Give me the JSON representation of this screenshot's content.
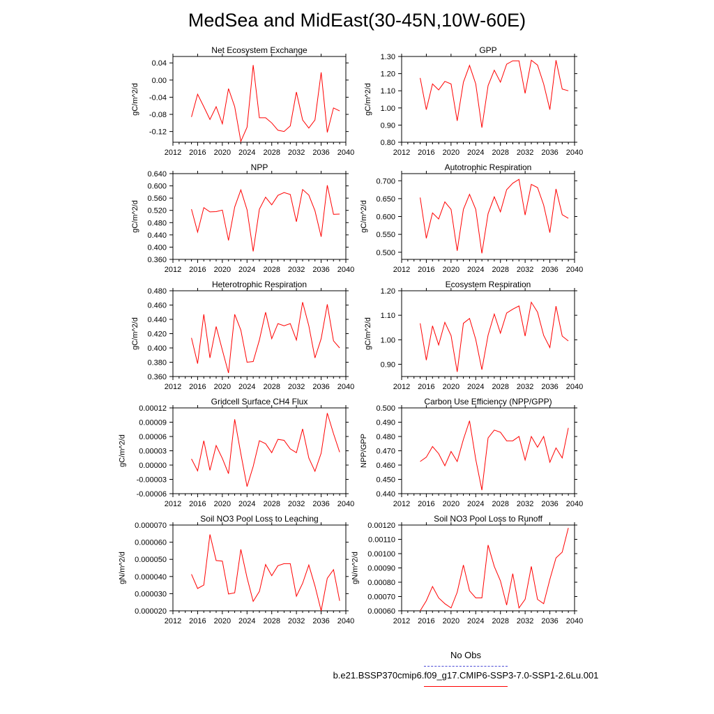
{
  "title": "MedSea and MidEast(30-45N,10W-60E)",
  "legend": {
    "obs_label": "No Obs",
    "case_label": "b.e21.BSSP370cmip6.f09_g17.CMIP6-SSP3-7.0-SSP1-2.6Lu.001",
    "obs_color": "#4b4bd6",
    "case_color": "#ff0000"
  },
  "chart_data": [
    {
      "type": "line",
      "title": "Net Ecosystem Exchange",
      "ylabel": "gC/m^2/d",
      "xlim": [
        2012,
        2040
      ],
      "ylim": [
        -0.145,
        0.055
      ],
      "xticks": [
        "2012",
        "2016",
        "2020",
        "2024",
        "2028",
        "2032",
        "2036",
        "2040"
      ],
      "yticks": [
        "0.04",
        "0.00",
        "-0.04",
        "-0.08",
        "-0.12"
      ],
      "x": [
        2015,
        2016,
        2017,
        2018,
        2019,
        2020,
        2021,
        2022,
        2023,
        2024,
        2025,
        2026,
        2027,
        2028,
        2029,
        2030,
        2031,
        2032,
        2033,
        2034,
        2035,
        2036,
        2037,
        2038,
        2039
      ],
      "series": [
        {
          "values": [
            -0.086,
            -0.033,
            -0.062,
            -0.092,
            -0.062,
            -0.102,
            -0.02,
            -0.062,
            -0.143,
            -0.11,
            0.035,
            -0.088,
            -0.088,
            -0.1,
            -0.117,
            -0.12,
            -0.107,
            -0.028,
            -0.093,
            -0.112,
            -0.093,
            0.018,
            -0.122,
            -0.065,
            -0.072
          ]
        }
      ]
    },
    {
      "type": "line",
      "title": "GPP",
      "ylabel": "gC/m^2/d",
      "xlim": [
        2012,
        2040
      ],
      "ylim": [
        0.8,
        1.3
      ],
      "xticks": [
        "2012",
        "2016",
        "2020",
        "2024",
        "2028",
        "2032",
        "2036",
        "2040"
      ],
      "yticks": [
        "1.30",
        "1.20",
        "1.10",
        "1.00",
        "0.90",
        "0.80"
      ],
      "x": [
        2015,
        2016,
        2017,
        2018,
        2019,
        2020,
        2021,
        2022,
        2023,
        2024,
        2025,
        2026,
        2027,
        2028,
        2029,
        2030,
        2031,
        2032,
        2033,
        2034,
        2035,
        2036,
        2037,
        2038,
        2039
      ],
      "series": [
        {
          "values": [
            1.175,
            0.99,
            1.14,
            1.105,
            1.155,
            1.14,
            0.925,
            1.15,
            1.248,
            1.14,
            0.885,
            1.13,
            1.22,
            1.15,
            1.255,
            1.275,
            1.275,
            1.085,
            1.278,
            1.25,
            1.14,
            0.99,
            1.278,
            1.11,
            1.1
          ]
        }
      ]
    },
    {
      "type": "line",
      "title": "NPP",
      "ylabel": "gC/m^2/d",
      "xlim": [
        2012,
        2040
      ],
      "ylim": [
        0.36,
        0.64
      ],
      "xticks": [
        "2012",
        "2016",
        "2020",
        "2024",
        "2028",
        "2032",
        "2036",
        "2040"
      ],
      "yticks": [
        "0.640",
        "0.600",
        "0.560",
        "0.520",
        "0.480",
        "0.440",
        "0.400",
        "0.360"
      ],
      "x": [
        2015,
        2016,
        2017,
        2018,
        2019,
        2020,
        2021,
        2022,
        2023,
        2024,
        2025,
        2026,
        2027,
        2028,
        2029,
        2030,
        2031,
        2032,
        2033,
        2034,
        2035,
        2036,
        2037,
        2038,
        2039
      ],
      "series": [
        {
          "values": [
            0.524,
            0.449,
            0.529,
            0.515,
            0.516,
            0.521,
            0.422,
            0.531,
            0.587,
            0.522,
            0.386,
            0.524,
            0.563,
            0.538,
            0.569,
            0.578,
            0.572,
            0.483,
            0.588,
            0.57,
            0.519,
            0.434,
            0.602,
            0.507,
            0.508
          ]
        }
      ]
    },
    {
      "type": "line",
      "title": "Autotrophic Respiration",
      "ylabel": "gC/m^2/d",
      "xlim": [
        2012,
        2040
      ],
      "ylim": [
        0.48,
        0.72
      ],
      "xticks": [
        "2012",
        "2016",
        "2020",
        "2024",
        "2028",
        "2032",
        "2036",
        "2040"
      ],
      "yticks": [
        "0.700",
        "0.650",
        "0.600",
        "0.550",
        "0.500"
      ],
      "x": [
        2015,
        2016,
        2017,
        2018,
        2019,
        2020,
        2021,
        2022,
        2023,
        2024,
        2025,
        2026,
        2027,
        2028,
        2029,
        2030,
        2031,
        2032,
        2033,
        2034,
        2035,
        2036,
        2037,
        2038,
        2039
      ],
      "series": [
        {
          "values": [
            0.653,
            0.539,
            0.61,
            0.593,
            0.641,
            0.62,
            0.504,
            0.62,
            0.662,
            0.62,
            0.497,
            0.608,
            0.655,
            0.613,
            0.675,
            0.693,
            0.704,
            0.604,
            0.69,
            0.681,
            0.632,
            0.555,
            0.677,
            0.605,
            0.595
          ]
        }
      ]
    },
    {
      "type": "line",
      "title": "Heterotrophic Respiration",
      "ylabel": "gC/m^2/d",
      "xlim": [
        2012,
        2040
      ],
      "ylim": [
        0.36,
        0.48
      ],
      "xticks": [
        "2012",
        "2016",
        "2020",
        "2024",
        "2028",
        "2032",
        "2036",
        "2040"
      ],
      "yticks": [
        "0.480",
        "0.460",
        "0.440",
        "0.420",
        "0.400",
        "0.380",
        "0.360"
      ],
      "x": [
        2015,
        2016,
        2017,
        2018,
        2019,
        2020,
        2021,
        2022,
        2023,
        2024,
        2025,
        2026,
        2027,
        2028,
        2029,
        2030,
        2031,
        2032,
        2033,
        2034,
        2035,
        2036,
        2037,
        2038,
        2039
      ],
      "series": [
        {
          "values": [
            0.414,
            0.378,
            0.447,
            0.386,
            0.43,
            0.397,
            0.365,
            0.447,
            0.425,
            0.38,
            0.381,
            0.411,
            0.45,
            0.413,
            0.434,
            0.431,
            0.434,
            0.411,
            0.464,
            0.431,
            0.386,
            0.413,
            0.461,
            0.41,
            0.4
          ]
        }
      ]
    },
    {
      "type": "line",
      "title": "Ecosystem Respiration",
      "ylabel": "gC/m^2/d",
      "xlim": [
        2012,
        2040
      ],
      "ylim": [
        0.85,
        1.2
      ],
      "xticks": [
        "2012",
        "2016",
        "2020",
        "2024",
        "2028",
        "2032",
        "2036",
        "2040"
      ],
      "yticks": [
        "1.20",
        "1.10",
        "1.00",
        "0.90"
      ],
      "x": [
        2015,
        2016,
        2017,
        2018,
        2019,
        2020,
        2021,
        2022,
        2023,
        2024,
        2025,
        2026,
        2027,
        2028,
        2029,
        2030,
        2031,
        2032,
        2033,
        2034,
        2035,
        2036,
        2037,
        2038,
        2039
      ],
      "series": [
        {
          "values": [
            1.067,
            0.917,
            1.057,
            0.979,
            1.071,
            1.017,
            0.869,
            1.067,
            1.087,
            1.001,
            0.878,
            1.019,
            1.105,
            1.027,
            1.109,
            1.125,
            1.138,
            1.015,
            1.153,
            1.113,
            1.018,
            0.968,
            1.137,
            1.015,
            0.995
          ]
        }
      ]
    },
    {
      "type": "line",
      "title": "Gridcell Surface CH4 Flux",
      "ylabel": "gC/m^2/d",
      "xlim": [
        2012,
        2040
      ],
      "ylim": [
        -6e-05,
        0.00012
      ],
      "xticks": [
        "2012",
        "2016",
        "2020",
        "2024",
        "2028",
        "2032",
        "2036",
        "2040"
      ],
      "yticks": [
        "0.00012",
        "0.00009",
        "0.00006",
        "0.00003",
        "0.00000",
        "-0.00003",
        "-0.00006"
      ],
      "x": [
        2015,
        2016,
        2017,
        2018,
        2019,
        2020,
        2021,
        2022,
        2023,
        2024,
        2025,
        2026,
        2027,
        2028,
        2029,
        2030,
        2031,
        2032,
        2033,
        2034,
        2035,
        2036,
        2037,
        2038,
        2039
      ],
      "series": [
        {
          "values": [
            1.3e-05,
            -1.2e-05,
            5.1e-05,
            -1.1e-05,
            4.1e-05,
            1.4e-05,
            -1.8e-05,
            9.6e-05,
            2.4e-05,
            -4.5e-05,
            -3e-06,
            5.1e-05,
            4.5e-05,
            2.6e-05,
            5.4e-05,
            5.2e-05,
            3.4e-05,
            2.6e-05,
            7.6e-05,
            1.5e-05,
            -1.3e-05,
            2.5e-05,
            0.000109,
            6.6e-05,
            2.7e-05
          ]
        }
      ]
    },
    {
      "type": "line",
      "title": "Carbon Use Efficiency (NPP/GPP)",
      "ylabel": "NPP/GPP",
      "xlim": [
        2012,
        2040
      ],
      "ylim": [
        0.44,
        0.5
      ],
      "xticks": [
        "2012",
        "2016",
        "2020",
        "2024",
        "2028",
        "2032",
        "2036",
        "2040"
      ],
      "yticks": [
        "0.500",
        "0.490",
        "0.480",
        "0.470",
        "0.460",
        "0.450",
        "0.440"
      ],
      "x": [
        2015,
        2016,
        2017,
        2018,
        2019,
        2020,
        2021,
        2022,
        2023,
        2024,
        2025,
        2026,
        2027,
        2028,
        2029,
        2030,
        2031,
        2032,
        2033,
        2034,
        2035,
        2036,
        2037,
        2038,
        2039
      ],
      "series": [
        {
          "values": [
            0.4625,
            0.4655,
            0.473,
            0.468,
            0.4595,
            0.4695,
            0.4625,
            0.478,
            0.491,
            0.464,
            0.4425,
            0.479,
            0.4845,
            0.483,
            0.477,
            0.477,
            0.48,
            0.4635,
            0.48,
            0.4725,
            0.48,
            0.462,
            0.472,
            0.465,
            0.486
          ]
        }
      ]
    },
    {
      "type": "line",
      "title": "Soil NO3 Pool Loss to Leaching",
      "ylabel": "gN/m^2/d",
      "xlim": [
        2012,
        2040
      ],
      "ylim": [
        2e-05,
        7e-05
      ],
      "xticks": [
        "2012",
        "2016",
        "2020",
        "2024",
        "2028",
        "2032",
        "2036",
        "2040"
      ],
      "yticks": [
        "0.000070",
        "0.000060",
        "0.000050",
        "0.000040",
        "0.000030",
        "0.000020"
      ],
      "x": [
        2015,
        2016,
        2017,
        2018,
        2019,
        2020,
        2021,
        2022,
        2023,
        2024,
        2025,
        2026,
        2027,
        2028,
        2029,
        2030,
        2031,
        2032,
        2033,
        2034,
        2035,
        2036,
        2037,
        2038,
        2039
      ],
      "series": [
        {
          "values": [
            4.13e-05,
            3.3e-05,
            3.5e-05,
            6.45e-05,
            4.93e-05,
            4.9e-05,
            2.98e-05,
            3.05e-05,
            5.58e-05,
            3.93e-05,
            2.55e-05,
            3.13e-05,
            4.7e-05,
            4.05e-05,
            4.63e-05,
            4.75e-05,
            4.75e-05,
            2.85e-05,
            3.6e-05,
            4.67e-05,
            3.45e-05,
            2e-05,
            3.9e-05,
            4.4e-05,
            2.58e-05
          ]
        }
      ]
    },
    {
      "type": "line",
      "title": "Soil NO3 Pool Loss to Runoff",
      "ylabel": "gN/m^2/d",
      "xlim": [
        2012,
        2040
      ],
      "ylim": [
        0.0006,
        0.0012
      ],
      "xticks": [
        "2012",
        "2016",
        "2020",
        "2024",
        "2028",
        "2032",
        "2036",
        "2040"
      ],
      "yticks": [
        "0.00120",
        "0.00110",
        "0.00100",
        "0.00090",
        "0.00080",
        "0.00070",
        "0.00060"
      ],
      "x": [
        2015,
        2016,
        2017,
        2018,
        2019,
        2020,
        2021,
        2022,
        2023,
        2024,
        2025,
        2026,
        2027,
        2028,
        2029,
        2030,
        2031,
        2032,
        2033,
        2034,
        2035,
        2036,
        2037,
        2038,
        2039
      ],
      "series": [
        {
          "values": [
            0.0006,
            0.00067,
            0.00077,
            0.00069,
            0.00065,
            0.00062,
            0.00073,
            0.00092,
            0.00074,
            0.00069,
            0.00069,
            0.00106,
            0.00091,
            0.00081,
            0.00064,
            0.00086,
            0.00062,
            0.00068,
            0.00091,
            0.00068,
            0.00065,
            0.00082,
            0.00097,
            0.00101,
            0.00118
          ]
        }
      ]
    }
  ]
}
